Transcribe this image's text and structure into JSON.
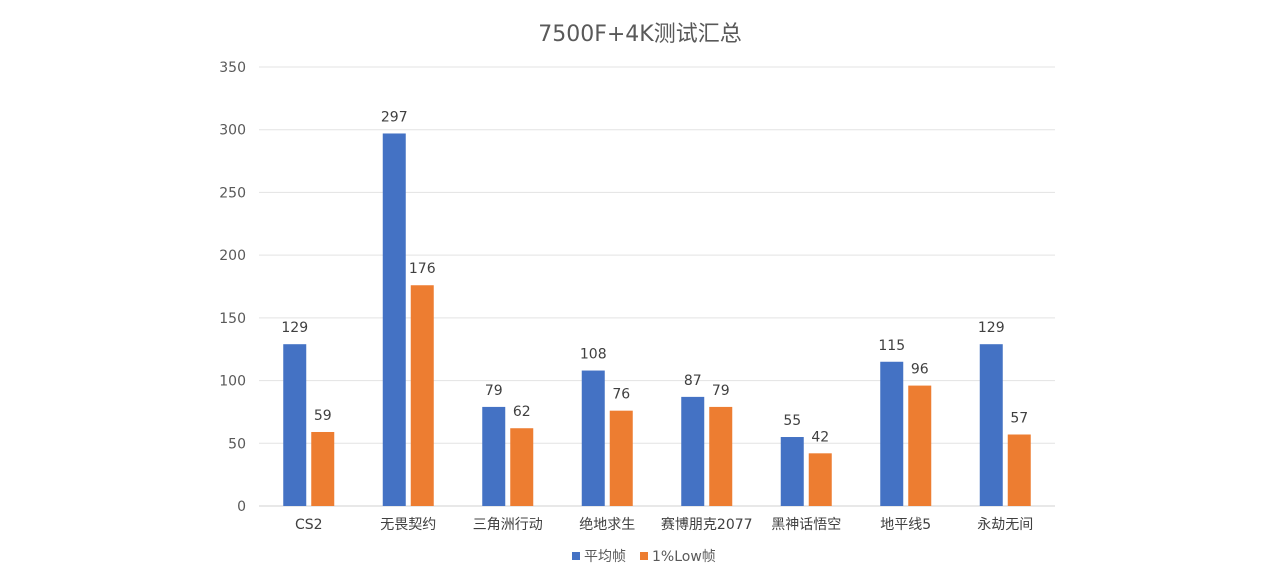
{
  "chart_data": {
    "type": "bar",
    "title": "7500F+4K测试汇总",
    "xlabel": "",
    "ylabel": "",
    "ylim": [
      0,
      350
    ],
    "yticks": [
      0,
      50,
      100,
      150,
      200,
      250,
      300,
      350
    ],
    "grid": true,
    "legend_position": "bottom",
    "categories": [
      "CS2",
      "无畏契约",
      "三角洲行动",
      "绝地求生",
      "赛博朋克2077",
      "黑神话悟空",
      "地平线5",
      "永劫无间"
    ],
    "series": [
      {
        "name": "平均帧",
        "color": "#4472C4",
        "values": [
          129,
          297,
          79,
          108,
          87,
          55,
          115,
          129
        ]
      },
      {
        "name": "1%Low帧",
        "color": "#ED7D31",
        "values": [
          59,
          176,
          62,
          76,
          79,
          42,
          96,
          57
        ]
      }
    ]
  }
}
